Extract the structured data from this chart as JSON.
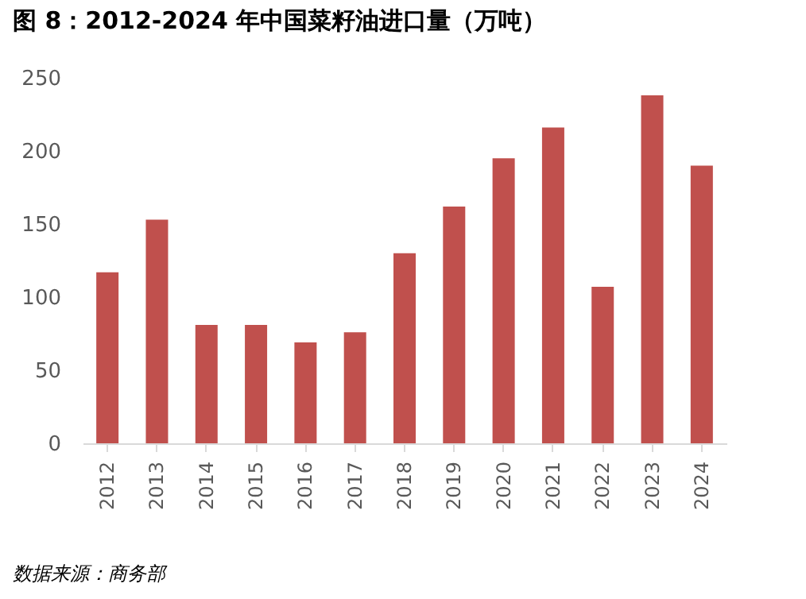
{
  "chart_data": {
    "type": "bar",
    "title": "图 8：2012-2024 年中国菜籽油进口量（万吨）",
    "categories": [
      "2012",
      "2013",
      "2014",
      "2015",
      "2016",
      "2017",
      "2018",
      "2019",
      "2020",
      "2021",
      "2022",
      "2023",
      "2024"
    ],
    "values": [
      117,
      153,
      81,
      81,
      69,
      76,
      130,
      162,
      195,
      216,
      107,
      238,
      190
    ],
    "color": "#c0504d",
    "ylim": [
      0,
      250
    ],
    "yticks": [
      0,
      50,
      100,
      150,
      200,
      250
    ],
    "grid": false,
    "annotations": [
      "数据来源：商务部"
    ]
  }
}
